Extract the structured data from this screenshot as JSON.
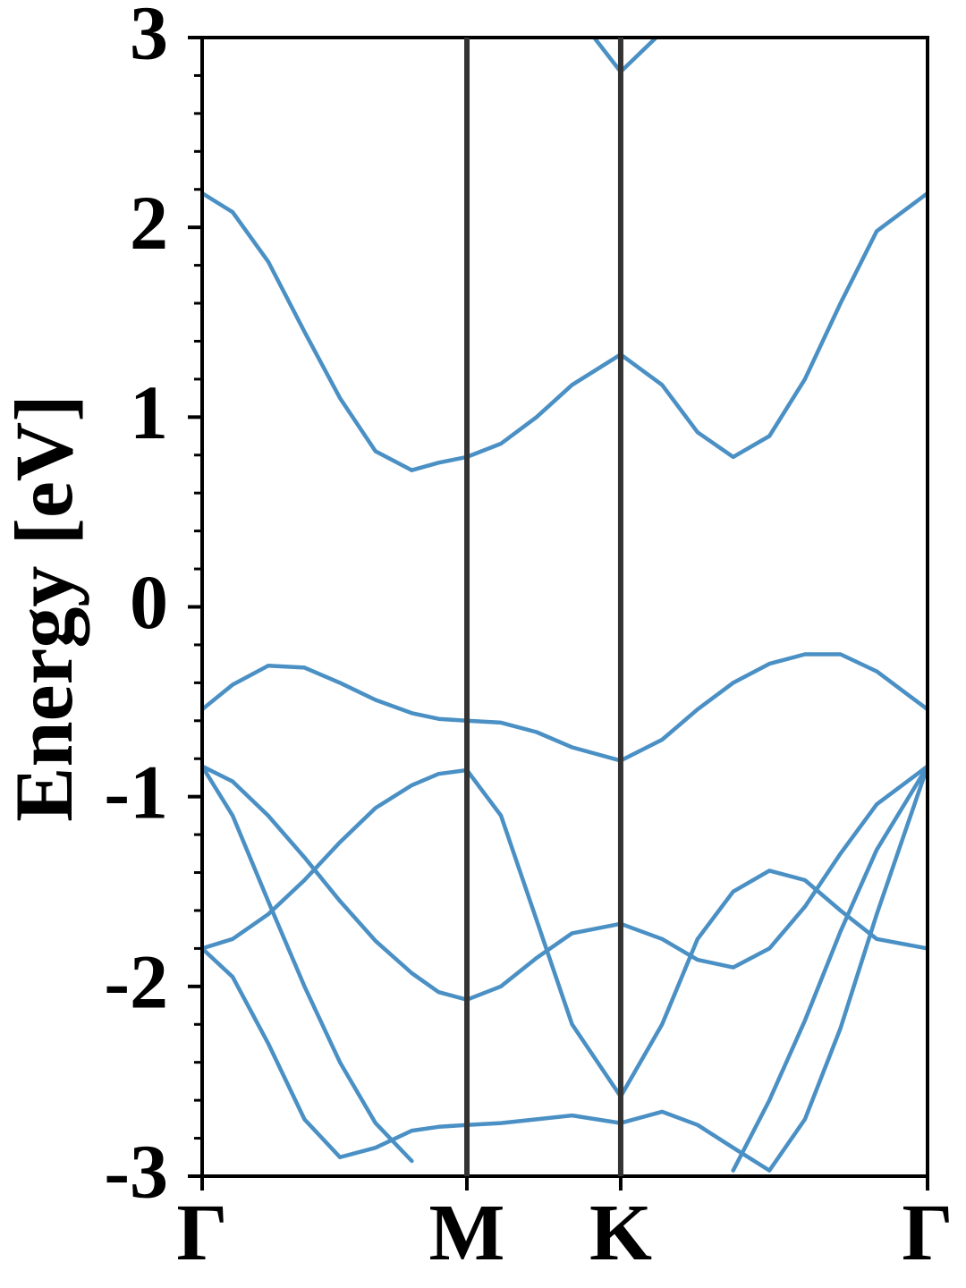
{
  "chart_data": {
    "type": "line",
    "ylabel": "Energy [eV]",
    "x": [
      0,
      0.042,
      0.091,
      0.141,
      0.19,
      0.239,
      0.289,
      0.326,
      0.365,
      0.412,
      0.461,
      0.51,
      0.577,
      0.634,
      0.683,
      0.732,
      0.782,
      0.831,
      0.88,
      0.93,
      1
    ],
    "series": [
      {
        "values": [
          2.18,
          2.08,
          1.82,
          1.45,
          1.1,
          0.82,
          0.72,
          0.76,
          0.79,
          0.86,
          1.0,
          1.17,
          1.33,
          1.17,
          0.92,
          0.79,
          0.9,
          1.2,
          1.6,
          1.98,
          2.18
        ]
      },
      {
        "values": [
          null,
          null,
          null,
          null,
          null,
          null,
          null,
          null,
          null,
          null,
          null,
          3.15,
          2.82,
          3.03,
          null,
          null,
          null,
          null,
          null,
          null,
          null
        ]
      },
      {
        "values": [
          -0.54,
          -0.41,
          -0.31,
          -0.32,
          -0.4,
          -0.49,
          -0.56,
          -0.59,
          -0.6,
          -0.61,
          -0.66,
          -0.74,
          -0.81,
          -0.7,
          -0.54,
          -0.4,
          -0.3,
          -0.25,
          -0.25,
          -0.34,
          -0.54
        ]
      },
      {
        "values": [
          -0.84,
          -0.92,
          -1.1,
          -1.32,
          -1.55,
          -1.76,
          -1.93,
          -2.03,
          -2.07,
          -2.0,
          -1.85,
          -1.72,
          -1.67,
          -1.75,
          -1.86,
          -1.9,
          -1.8,
          -1.58,
          -1.3,
          -1.04,
          -0.84
        ]
      },
      {
        "values": [
          -1.8,
          -1.75,
          -1.62,
          -1.44,
          -1.24,
          -1.06,
          -0.94,
          -0.88,
          -0.86,
          -1.1,
          -1.65,
          -2.2,
          -2.58,
          -2.2,
          -1.75,
          -1.5,
          -1.39,
          -1.44,
          -1.6,
          -1.75,
          -1.8
        ]
      },
      {
        "values": [
          -0.84,
          -1.1,
          -1.55,
          -2.0,
          -2.4,
          -2.72,
          -2.92,
          null,
          null,
          null,
          null,
          null,
          null,
          null,
          null,
          -2.97,
          -2.6,
          -2.18,
          -1.71,
          -1.28,
          -0.84
        ]
      },
      {
        "values": [
          -1.8,
          -1.95,
          -2.3,
          -2.7,
          -2.9,
          -2.85,
          -2.76,
          -2.74,
          -2.73,
          -2.72,
          -2.7,
          -2.68,
          -2.72,
          -2.66,
          -2.73,
          -2.85,
          -2.97,
          -2.7,
          -2.22,
          -1.62,
          -0.84
        ]
      }
    ],
    "color": "#4a90c4",
    "xlim": [
      0,
      1
    ],
    "ylim": [
      -3,
      3
    ],
    "xticks": [
      {
        "value": 0,
        "label": "Γ"
      },
      {
        "value": 0.365,
        "label": "M"
      },
      {
        "value": 0.577,
        "label": "K"
      },
      {
        "value": 1,
        "label": "Γ"
      }
    ],
    "yticks": [
      -3,
      -2,
      -1,
      0,
      1,
      2,
      3
    ],
    "minor_ytick_step": 0.2,
    "xtick_lines": true
  }
}
